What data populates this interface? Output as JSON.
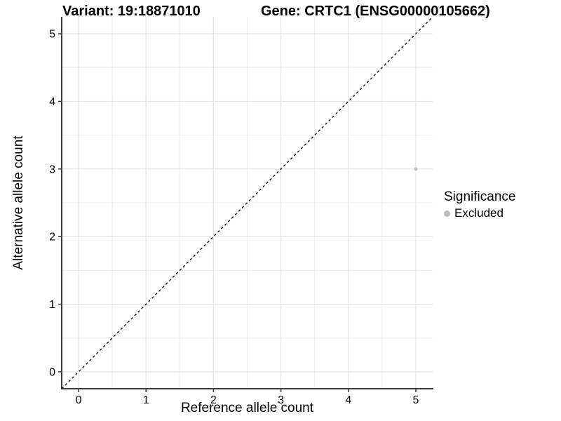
{
  "chart_data": {
    "type": "scatter",
    "title_left": "Variant: 19:18871010",
    "title_right": "Gene: CRTC1 (ENSG00000105662)",
    "xlabel": "Reference allele count",
    "ylabel": "Alternative allele count",
    "xlim": [
      -0.25,
      5.25
    ],
    "ylim": [
      -0.25,
      5.25
    ],
    "x_ticks": [
      0,
      1,
      2,
      3,
      4,
      5
    ],
    "y_ticks": [
      0,
      1,
      2,
      3,
      4,
      5
    ],
    "minor_ticks": [
      0.5,
      1.5,
      2.5,
      3.5,
      4.5
    ],
    "grid": "major+minor",
    "legend_position": "right",
    "series": [
      {
        "name": "Excluded",
        "color": "#bdbdbd",
        "point_radius": 2.5,
        "points": [
          {
            "x": 5,
            "y": 3
          }
        ]
      }
    ],
    "reference_line": {
      "type": "identity y=x",
      "from": [
        -0.25,
        -0.25
      ],
      "to": [
        5.25,
        5.25
      ],
      "linestyle": "dashed",
      "color": "#000000"
    },
    "legend": {
      "title": "Significance",
      "items": [
        {
          "label": "Excluded",
          "color": "#bdbdbd"
        }
      ]
    },
    "colors": {
      "background": "#ffffff",
      "grid_major": "#e3e3e3",
      "grid_minor": "#ededed",
      "axis_line": "#3a3a3a",
      "tick_mark": "#3a3a3a",
      "tick_label": "#000000"
    }
  }
}
